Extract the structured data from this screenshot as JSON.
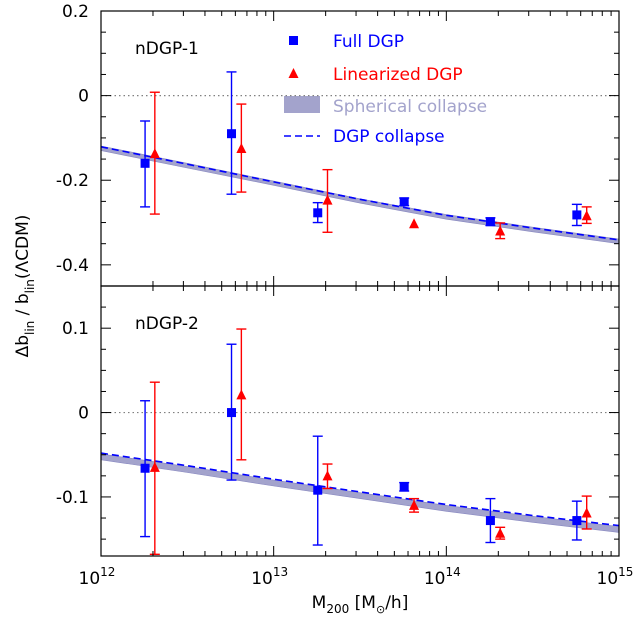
{
  "chart_data": {
    "type": "scatter",
    "xaxis": {
      "label_main": "M",
      "label_sub": "200",
      "label_rest": " [M",
      "label_sun": "⊙",
      "label_end": "/h]",
      "scale": "log",
      "range": [
        1000000000000.0,
        1000000000000000.0
      ],
      "ticks": [
        {
          "value": 1000000000000.0,
          "base": "10",
          "exp": "12"
        },
        {
          "value": 10000000000000.0,
          "base": "10",
          "exp": "13"
        },
        {
          "value": 100000000000000.0,
          "base": "10",
          "exp": "14"
        },
        {
          "value": 1000000000000000.0,
          "base": "10",
          "exp": "15"
        }
      ]
    },
    "yaxis": {
      "label_a": "Δb",
      "label_a_sub": "lin",
      "label_b": " / b",
      "label_b_sub": "lin",
      "label_c": "(ΛCDM)"
    },
    "legend": {
      "placement": "top",
      "entries": [
        {
          "key": "full",
          "label": "Full DGP",
          "color": "#0000ff"
        },
        {
          "key": "lin",
          "label": "Linearized DGP",
          "color": "#ff0000"
        },
        {
          "key": "sph",
          "label": "Spherical collapse",
          "color": "#a3a3cc"
        },
        {
          "key": "dgp",
          "label": "DGP collapse",
          "color": "#0000ff"
        }
      ]
    },
    "colors": {
      "full": "#0000ff",
      "lin": "#ff0000",
      "band": "#a3a3cc",
      "band_edge": "#8888c0",
      "curve": "#0000ff",
      "zero": "#808080"
    },
    "panels": [
      {
        "label": "nDGP-1",
        "ylim": [
          -0.45,
          0.2
        ],
        "yticks": [
          {
            "value": 0.2,
            "label": "0.2"
          },
          {
            "value": 0,
            "label": "0"
          },
          {
            "value": -0.2,
            "label": "-0.2"
          },
          {
            "value": -0.4,
            "label": "-0.4"
          }
        ],
        "full": [
          {
            "x": 1800000000000.0,
            "y": -0.16,
            "lo": -0.263,
            "hi": -0.06
          },
          {
            "x": 5700000000000.0,
            "y": -0.09,
            "lo": -0.233,
            "hi": 0.056
          },
          {
            "x": 18000000000000.0,
            "y": -0.277,
            "lo": -0.3,
            "hi": -0.253
          },
          {
            "x": 57000000000000.0,
            "y": -0.251,
            "lo": -0.26,
            "hi": -0.242
          },
          {
            "x": 180000000000000.0,
            "y": -0.298,
            "lo": -0.307,
            "hi": -0.289
          },
          {
            "x": 570000000000000.0,
            "y": -0.282,
            "lo": -0.307,
            "hi": -0.257
          }
        ],
        "lin": [
          {
            "x": 2050000000000.0,
            "y": -0.137,
            "lo": -0.28,
            "hi": 0.008
          },
          {
            "x": 6500000000000.0,
            "y": -0.125,
            "lo": -0.228,
            "hi": -0.02
          },
          {
            "x": 20500000000000.0,
            "y": -0.247,
            "lo": -0.323,
            "hi": -0.175
          },
          {
            "x": 65000000000000.0,
            "y": -0.303,
            "lo": -0.303,
            "hi": -0.303
          },
          {
            "x": 205000000000000.0,
            "y": -0.32,
            "lo": -0.338,
            "hi": -0.301
          },
          {
            "x": 650000000000000.0,
            "y": -0.284,
            "lo": -0.302,
            "hi": -0.263
          }
        ],
        "band": {
          "x": [
            1000000000000.0,
            3160000000000.0,
            10000000000000.0,
            31600000000000.0,
            100000000000000.0,
            316000000000000.0,
            1000000000000000.0
          ],
          "lower": [
            -0.13,
            -0.171,
            -0.212,
            -0.254,
            -0.292,
            -0.322,
            -0.35
          ],
          "upper": [
            -0.119,
            -0.16,
            -0.202,
            -0.244,
            -0.281,
            -0.311,
            -0.339
          ]
        },
        "curve": {
          "x": [
            1000000000000.0,
            3160000000000.0,
            10000000000000.0,
            31600000000000.0,
            100000000000000.0,
            316000000000000.0,
            1000000000000000.0
          ],
          "y": [
            -0.121,
            -0.162,
            -0.204,
            -0.245,
            -0.283,
            -0.313,
            -0.341
          ]
        }
      },
      {
        "label": "nDGP-2",
        "ylim": [
          -0.17,
          0.15
        ],
        "yticks": [
          {
            "value": 0.1,
            "label": "0.1"
          },
          {
            "value": 0,
            "label": "0"
          },
          {
            "value": -0.1,
            "label": "-0.1"
          }
        ],
        "full": [
          {
            "x": 1800000000000.0,
            "y": -0.066,
            "lo": -0.147,
            "hi": 0.014
          },
          {
            "x": 5700000000000.0,
            "y": 0.0,
            "lo": -0.08,
            "hi": 0.081
          },
          {
            "x": 18000000000000.0,
            "y": -0.092,
            "lo": -0.157,
            "hi": -0.028
          },
          {
            "x": 57000000000000.0,
            "y": -0.088,
            "lo": -0.093,
            "hi": -0.083
          },
          {
            "x": 180000000000000.0,
            "y": -0.128,
            "lo": -0.154,
            "hi": -0.102
          },
          {
            "x": 570000000000000.0,
            "y": -0.128,
            "lo": -0.151,
            "hi": -0.105
          }
        ],
        "lin": [
          {
            "x": 2050000000000.0,
            "y": -0.065,
            "lo": -0.168,
            "hi": 0.036
          },
          {
            "x": 6500000000000.0,
            "y": 0.021,
            "lo": -0.056,
            "hi": 0.099
          },
          {
            "x": 20500000000000.0,
            "y": -0.075,
            "lo": -0.09,
            "hi": -0.061
          },
          {
            "x": 65000000000000.0,
            "y": -0.11,
            "lo": -0.118,
            "hi": -0.102
          },
          {
            "x": 205000000000000.0,
            "y": -0.143,
            "lo": -0.15,
            "hi": -0.136
          },
          {
            "x": 650000000000000.0,
            "y": -0.119,
            "lo": -0.138,
            "hi": -0.099
          }
        ],
        "band": {
          "x": [
            1000000000000.0,
            3160000000000.0,
            10000000000000.0,
            31600000000000.0,
            100000000000000.0,
            316000000000000.0,
            1000000000000000.0
          ],
          "lower": [
            -0.056,
            -0.071,
            -0.087,
            -0.102,
            -0.117,
            -0.13,
            -0.142
          ],
          "upper": [
            -0.049,
            -0.064,
            -0.08,
            -0.095,
            -0.11,
            -0.123,
            -0.135
          ]
        },
        "curve": {
          "x": [
            1000000000000.0,
            3160000000000.0,
            10000000000000.0,
            31600000000000.0,
            100000000000000.0,
            316000000000000.0,
            1000000000000000.0
          ],
          "y": [
            -0.048,
            -0.063,
            -0.079,
            -0.094,
            -0.109,
            -0.122,
            -0.134
          ]
        }
      }
    ]
  }
}
